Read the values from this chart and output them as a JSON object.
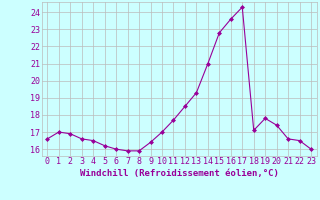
{
  "x": [
    0,
    1,
    2,
    3,
    4,
    5,
    6,
    7,
    8,
    9,
    10,
    11,
    12,
    13,
    14,
    15,
    16,
    17,
    18,
    19,
    20,
    21,
    22,
    23
  ],
  "y": [
    16.6,
    17.0,
    16.9,
    16.6,
    16.5,
    16.2,
    16.0,
    15.9,
    15.9,
    16.4,
    17.0,
    17.7,
    18.5,
    19.3,
    21.0,
    22.8,
    23.6,
    24.3,
    17.1,
    17.8,
    17.4,
    16.6,
    16.5,
    16.0
  ],
  "line_color": "#990099",
  "marker": "D",
  "marker_size": 2,
  "xlabel": "Windchill (Refroidissement éolien,°C)",
  "ylabel": "",
  "title": "",
  "xlim": [
    -0.5,
    23.5
  ],
  "ylim": [
    15.6,
    24.6
  ],
  "yticks": [
    16,
    17,
    18,
    19,
    20,
    21,
    22,
    23,
    24
  ],
  "xticks": [
    0,
    1,
    2,
    3,
    4,
    5,
    6,
    7,
    8,
    9,
    10,
    11,
    12,
    13,
    14,
    15,
    16,
    17,
    18,
    19,
    20,
    21,
    22,
    23
  ],
  "bg_color": "#ccffff",
  "grid_color": "#bbbbbb",
  "label_color": "#990099",
  "tick_color": "#990099",
  "font_size": 6,
  "xlabel_fontsize": 6.5
}
